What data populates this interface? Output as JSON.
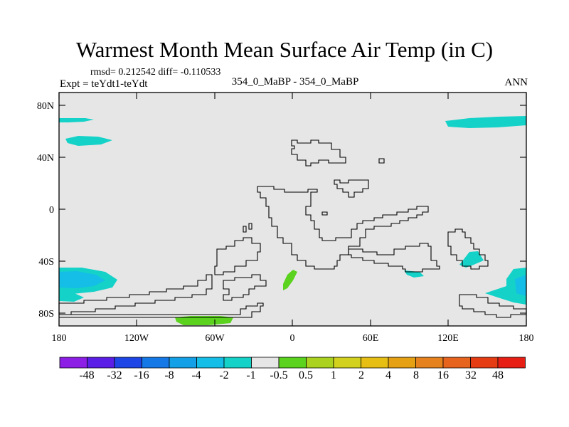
{
  "title": "Warmest Month Mean Surface Air Temp (in C)",
  "stats": "rmsd= 0.212542  diff= -0.110533",
  "experiment": "Expt = teYdt1-teYdt",
  "subtitle": "354_0_MaBP - 354_0_MaBP",
  "season": "ANN",
  "colors": {
    "land_background": "#e6e6e6",
    "coastline": "#000000"
  },
  "axes": {
    "lat_labels": [
      "80N",
      "40N",
      "0",
      "40S",
      "80S"
    ],
    "lon_labels": [
      "180",
      "120W",
      "60W",
      "0",
      "60E",
      "120E",
      "180"
    ]
  },
  "colorbar": {
    "colors": [
      "#8c1ee6",
      "#5a1ee6",
      "#1e46e6",
      "#1478e6",
      "#14a0e6",
      "#14bee6",
      "#14d2c8",
      "#e6e6e6",
      "#5ad21e",
      "#aad21e",
      "#d2d21e",
      "#e6be14",
      "#e6a014",
      "#e6821e",
      "#e6641e",
      "#e63c14",
      "#e61e14"
    ],
    "labels": [
      "-48",
      "-32",
      "-16",
      "-8",
      "-4",
      "-2",
      "-1",
      "-0.5",
      "0.5",
      "1",
      "2",
      "4",
      "8",
      "16",
      "32",
      "48"
    ]
  }
}
